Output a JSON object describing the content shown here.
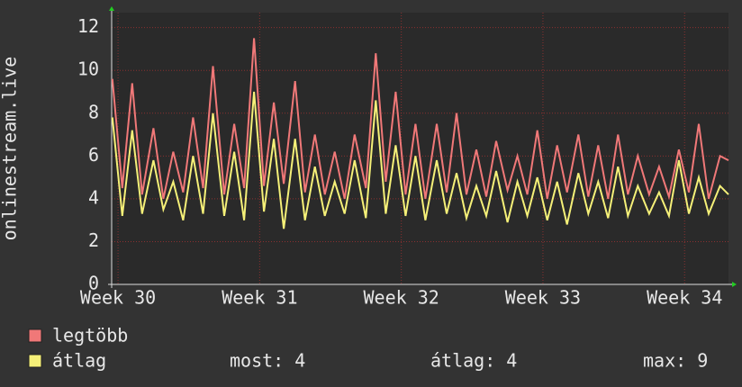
{
  "chart_data": {
    "type": "line",
    "ylabel": "onlinestream.live",
    "x": [
      29.96,
      30.03,
      30.1,
      30.17,
      30.25,
      30.32,
      30.39,
      30.46,
      30.53,
      30.6,
      30.67,
      30.75,
      30.82,
      30.89,
      30.96,
      31.03,
      31.1,
      31.17,
      31.25,
      31.32,
      31.39,
      31.46,
      31.53,
      31.6,
      31.67,
      31.75,
      31.82,
      31.89,
      31.96,
      32.03,
      32.1,
      32.17,
      32.25,
      32.32,
      32.39,
      32.46,
      32.53,
      32.6,
      32.67,
      32.75,
      32.82,
      32.89,
      32.96,
      33.03,
      33.1,
      33.17,
      33.25,
      33.32,
      33.39,
      33.46,
      33.53,
      33.6,
      33.67,
      33.75,
      33.82,
      33.89,
      33.96,
      34.03,
      34.1,
      34.17,
      34.25,
      34.31
    ],
    "series": [
      {
        "name": "legtöbb",
        "color": "#f07878",
        "values": [
          9.6,
          4.5,
          9.4,
          4.2,
          7.3,
          4.0,
          6.2,
          4.3,
          7.8,
          4.5,
          10.2,
          4.2,
          7.5,
          4.5,
          11.5,
          4.6,
          8.5,
          4.7,
          9.5,
          4.3,
          7.0,
          4.2,
          6.2,
          4.0,
          7.0,
          4.5,
          10.8,
          4.8,
          9.0,
          4.2,
          7.5,
          4.0,
          7.5,
          4.3,
          8.0,
          4.2,
          6.3,
          4.1,
          6.7,
          4.4,
          6.0,
          4.2,
          7.2,
          4.0,
          6.5,
          4.3,
          7.0,
          4.1,
          6.5,
          4.0,
          7.0,
          4.2,
          6.0,
          4.2,
          5.5,
          4.1,
          6.3,
          4.3,
          7.5,
          4.0,
          6.0,
          5.8
        ]
      },
      {
        "name": "átlag",
        "color": "#f5f078",
        "values": [
          7.8,
          3.2,
          7.2,
          3.3,
          5.8,
          3.5,
          4.8,
          3.0,
          6.0,
          3.3,
          8.0,
          3.2,
          6.2,
          3.0,
          9.0,
          3.4,
          6.8,
          2.6,
          6.8,
          3.0,
          5.5,
          3.2,
          4.8,
          3.3,
          5.8,
          3.1,
          8.6,
          3.3,
          6.5,
          3.2,
          6.0,
          3.0,
          5.8,
          3.3,
          5.2,
          3.1,
          4.6,
          3.2,
          5.3,
          2.9,
          4.8,
          3.2,
          5.0,
          3.0,
          4.8,
          2.8,
          5.2,
          3.3,
          4.8,
          3.1,
          5.5,
          3.2,
          4.6,
          3.3,
          4.3,
          3.2,
          5.8,
          3.3,
          5.0,
          3.3,
          4.6,
          4.2
        ]
      }
    ],
    "xlim": [
      29.955,
      34.31
    ],
    "xticks": [
      {
        "value": 30,
        "label": "Week 30"
      },
      {
        "value": 31,
        "label": "Week 31"
      },
      {
        "value": 32,
        "label": "Week 32"
      },
      {
        "value": 33,
        "label": "Week 33"
      },
      {
        "value": 34,
        "label": "Week 34"
      }
    ],
    "ylim": [
      0,
      12.7
    ],
    "yticks": [
      0,
      2,
      4,
      6,
      8,
      10,
      12
    ],
    "grid": true,
    "stats": [
      "most: 4",
      "átlag: 4",
      "max: 9"
    ]
  }
}
